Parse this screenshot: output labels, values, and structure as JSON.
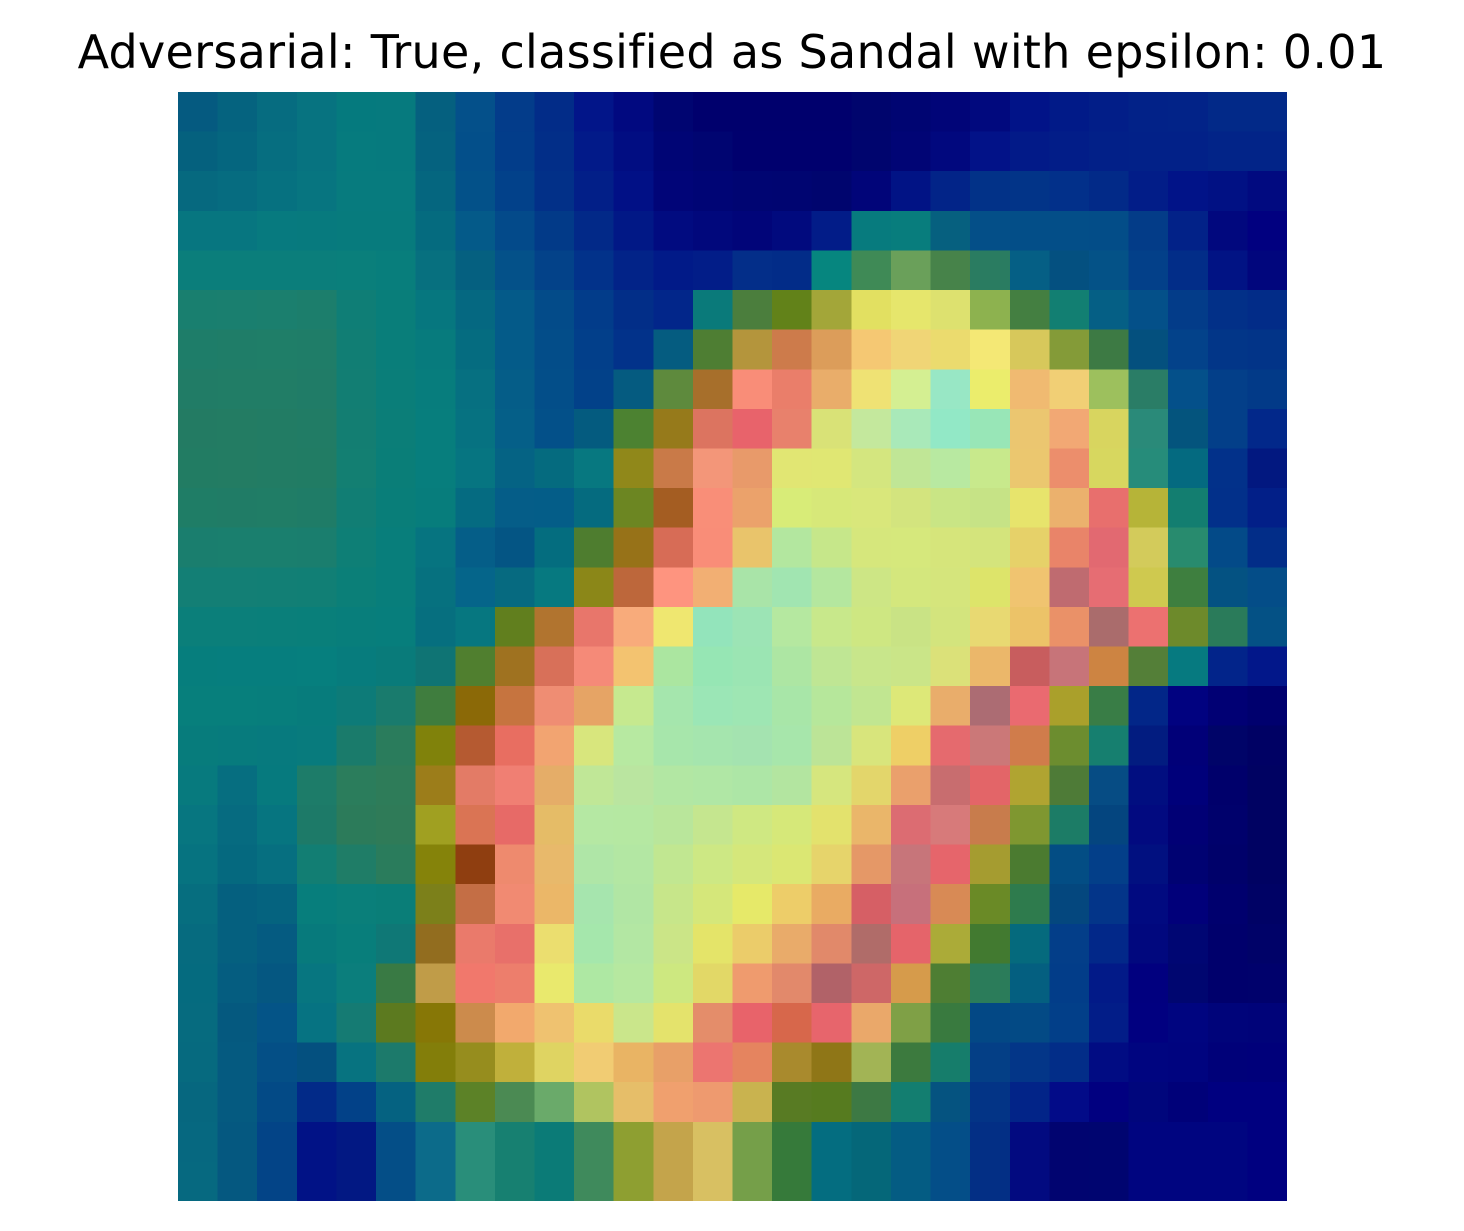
{
  "figure": {
    "title": "Adversarial: True, classified as Sandal with epsilon: 0.01"
  },
  "image": {
    "description_icon": "heatmap-overlay-image",
    "grid_size": 28,
    "colors": [
      [
        "#055a80",
        "#05637f",
        "#066c80",
        "#077380",
        "#057a7e",
        "#067a7e",
        "#05607f",
        "#04508a",
        "#033c8a",
        "#022c88",
        "#021589",
        "#010980",
        "#000571",
        "#00006d",
        "#00006d",
        "#00006d",
        "#00006d",
        "#00056d",
        "#000572",
        "#010578",
        "#01097e",
        "#011388",
        "#011a88",
        "#021e88",
        "#022288",
        "#022388",
        "#022988",
        "#022988"
      ],
      [
        "#05617e",
        "#05667f",
        "#066e80",
        "#077380",
        "#067b7e",
        "#067a7e",
        "#05627f",
        "#034f8a",
        "#023d8a",
        "#022e88",
        "#021a89",
        "#010d82",
        "#000575",
        "#000571",
        "#00006e",
        "#00006e",
        "#00006e",
        "#00056e",
        "#010575",
        "#01087e",
        "#021288",
        "#021a88",
        "#021d88",
        "#022088",
        "#022188",
        "#022188",
        "#022488",
        "#022488"
      ],
      [
        "#06697f",
        "#066c80",
        "#067180",
        "#077580",
        "#077b7e",
        "#077b7e",
        "#05667f",
        "#035189",
        "#02418a",
        "#023088",
        "#021f88",
        "#011086",
        "#010578",
        "#000575",
        "#000572",
        "#000571",
        "#00056e",
        "#010579",
        "#011385",
        "#022488",
        "#023288",
        "#023488",
        "#02308a",
        "#022a88",
        "#021d88",
        "#011388",
        "#011184",
        "#010a80"
      ],
      [
        "#077680",
        "#077680",
        "#077a7f",
        "#077a7e",
        "#077b7d",
        "#077b7d",
        "#056b7f",
        "#045a89",
        "#034a8a",
        "#023a88",
        "#022988",
        "#011886",
        "#010b80",
        "#01087c",
        "#010579",
        "#010a7e",
        "#021c88",
        "#077b7e",
        "#087d7d",
        "#06607f",
        "#044f88",
        "#034e88",
        "#034e88",
        "#034d88",
        "#033c88",
        "#022288",
        "#01087e",
        "#010080"
      ],
      [
        "#0b7e7b",
        "#0b7e7b",
        "#0b7e7b",
        "#0b7e7b",
        "#0a7f7b",
        "#087e7c",
        "#07707f",
        "#056080",
        "#045189",
        "#034289",
        "#02328a",
        "#022388",
        "#011a88",
        "#021d88",
        "#032e89",
        "#022c88",
        "#06867f",
        "#3f8a56",
        "#6aa05a",
        "#47834a",
        "#2a7c61",
        "#055f85",
        "#045080",
        "#045287",
        "#034089",
        "#022d88",
        "#011384",
        "#01067d"
      ],
      [
        "#197f6f",
        "#1a7f6f",
        "#1b7f6e",
        "#1c7e6c",
        "#0f7e76",
        "#097e7a",
        "#06777f",
        "#056881",
        "#045a89",
        "#034b89",
        "#023c8a",
        "#022e88",
        "#02268a",
        "#0a7a7a",
        "#4b7e3d",
        "#628219",
        "#a3a639",
        "#e2e061",
        "#e6e66c",
        "#dde16f",
        "#8db24f",
        "#447f41",
        "#127f72",
        "#055f85",
        "#045089",
        "#033c89",
        "#023088",
        "#022c88"
      ],
      [
        "#1e7d69",
        "#1f7d68",
        "#1f7e68",
        "#1f7d68",
        "#117e74",
        "#097e7a",
        "#077b7d",
        "#056c80",
        "#045b89",
        "#034d89",
        "#023f8a",
        "#02328a",
        "#055c80",
        "#4e7e33",
        "#b4953c",
        "#cd7b4b",
        "#dc9d5a",
        "#f5c873",
        "#f0d576",
        "#ebdb6e",
        "#f4e875",
        "#d7c85b",
        "#849b38",
        "#3d7a44",
        "#04507e",
        "#03428a",
        "#023688",
        "#023488"
      ],
      [
        "#217c66",
        "#217d66",
        "#217d66",
        "#207c67",
        "#127e73",
        "#0a7e79",
        "#077d7d",
        "#067081",
        "#055d88",
        "#034e89",
        "#024189",
        "#055b80",
        "#5e8a3d",
        "#a76f2b",
        "#f98d78",
        "#ea7e6a",
        "#e9ad6a",
        "#efe274",
        "#d4ef92",
        "#98e7c5",
        "#ebed6c",
        "#f0ba71",
        "#f1cf75",
        "#9dc05d",
        "#2a7d66",
        "#04508a",
        "#033f89",
        "#023a88"
      ],
      [
        "#237b63",
        "#237c63",
        "#227c64",
        "#217c65",
        "#137e72",
        "#0b7e78",
        "#077e7d",
        "#067281",
        "#055f88",
        "#035089",
        "#045b7f",
        "#4c8231",
        "#967a1b",
        "#dc7460",
        "#e8636b",
        "#e8816c",
        "#d9e277",
        "#c4e89d",
        "#a9e9b9",
        "#92e8c6",
        "#98e6b7",
        "#ebc670",
        "#f2a874",
        "#d8d55f",
        "#2a8a79",
        "#04547d",
        "#033f89",
        "#02288a"
      ],
      [
        "#227c63",
        "#237c63",
        "#227c64",
        "#217c64",
        "#137f72",
        "#0a7e78",
        "#077e7d",
        "#067581",
        "#056384",
        "#056b7f",
        "#077880",
        "#90881a",
        "#c97a48",
        "#f39679",
        "#e89a6a",
        "#e1e673",
        "#e0e773",
        "#d4e67f",
        "#c0e696",
        "#b8e9a1",
        "#c8e98c",
        "#ebc76f",
        "#ec8e6c",
        "#d7d75f",
        "#268c7a",
        "#046a80",
        "#02318a",
        "#021880"
      ],
      [
        "#1f7d66",
        "#207c66",
        "#207d66",
        "#1f7c67",
        "#117e74",
        "#097e79",
        "#077d7c",
        "#056b81",
        "#055d88",
        "#045d88",
        "#056b7f",
        "#6c8622",
        "#a45d22",
        "#f98e78",
        "#eba26b",
        "#d8ec78",
        "#d7e879",
        "#d9e77b",
        "#d3e47e",
        "#c9e585",
        "#c6e386",
        "#e7e46c",
        "#ebb16d",
        "#e86f6d",
        "#b6b438",
        "#137e70",
        "#02308a",
        "#021f88"
      ],
      [
        "#1a7e6e",
        "#1a7f6e",
        "#1a7f6e",
        "#1a7e6e",
        "#0e7f76",
        "#087e7b",
        "#067480",
        "#055e88",
        "#045584",
        "#046d7f",
        "#4e7d2f",
        "#977218",
        "#d76c56",
        "#f98d78",
        "#e9c46b",
        "#b3e79f",
        "#c6e78a",
        "#d6e77c",
        "#d6e87c",
        "#d6e57b",
        "#d4e47c",
        "#e6d169",
        "#e98469",
        "#e26971",
        "#d3cb5b",
        "#288b6e",
        "#034a88",
        "#022d88"
      ],
      [
        "#137f75",
        "#137f75",
        "#127f75",
        "#117f75",
        "#0b7f78",
        "#087e7b",
        "#06717f",
        "#05658a",
        "#066a80",
        "#067980",
        "#8b8718",
        "#bd673b",
        "#fe947f",
        "#f2af73",
        "#a9e4a8",
        "#a1e5b1",
        "#b4e79f",
        "#cde685",
        "#d4e77d",
        "#d5e57c",
        "#dde46a",
        "#f0c470",
        "#bf6b70",
        "#e66d73",
        "#cfc94f",
        "#3e7f3f",
        "#045282",
        "#044d88"
      ],
      [
        "#0b7f7a",
        "#0b7f7a",
        "#0a7f7a",
        "#097f7a",
        "#087e7b",
        "#077e7c",
        "#066f7f",
        "#067780",
        "#617f1e",
        "#b1742f",
        "#e8766b",
        "#f8ab7b",
        "#efe770",
        "#93e4bb",
        "#9ce4b5",
        "#b5e8a0",
        "#c8e88b",
        "#cee782",
        "#c9e385",
        "#d3e47d",
        "#e8d972",
        "#ecc368",
        "#ea9168",
        "#aa6c6c",
        "#ec7170",
        "#6d8a2b",
        "#2a7b5a",
        "#045185"
      ],
      [
        "#067e7d",
        "#067e7e",
        "#067e7e",
        "#067f7e",
        "#077c7d",
        "#097b7a",
        "#0f7474",
        "#507f2f",
        "#9f7220",
        "#d87059",
        "#f58a78",
        "#f3c370",
        "#abe6a0",
        "#96e6b4",
        "#9be5b3",
        "#ade6a3",
        "#bfe694",
        "#c8e68b",
        "#cae588",
        "#dbe179",
        "#ebb76a",
        "#c85d5e",
        "#c77479",
        "#cd8442",
        "#547f38",
        "#067a80",
        "#02248a",
        "#02178a"
      ],
      [
        "#077f7c",
        "#077f7c",
        "#077e7c",
        "#077c7c",
        "#0d7b78",
        "#197b6d",
        "#3f7d3e",
        "#8b6907",
        "#c6743f",
        "#ef8d73",
        "#e6a465",
        "#c6e98f",
        "#a5e6ad",
        "#9be6b6",
        "#9ee6b3",
        "#a8e6a8",
        "#b6e79b",
        "#c1e691",
        "#dde878",
        "#e9ad6b",
        "#ac6c73",
        "#ea6a70",
        "#aaa02b",
        "#397d46",
        "#022688",
        "#010280",
        "#010074",
        "#00006e"
      ],
      [
        "#077c7c",
        "#077b7d",
        "#077a7e",
        "#087b7d",
        "#1a7b6b",
        "#2a7c5c",
        "#80820b",
        "#b55a31",
        "#e86e61",
        "#f2a471",
        "#d8e67d",
        "#b7e9a1",
        "#a7e6ab",
        "#a5e5ae",
        "#a4e3b0",
        "#a7e6ab",
        "#bce497",
        "#d8e57c",
        "#eecf66",
        "#e56a6e",
        "#cb7878",
        "#d07c4b",
        "#6c8d2f",
        "#167f6f",
        "#021c80",
        "#010078",
        "#000468",
        "#000164"
      ],
      [
        "#077a7e",
        "#066e80",
        "#067a7e",
        "#1d7c69",
        "#2b7d5c",
        "#2e7c59",
        "#9c7d1a",
        "#e37b66",
        "#f07f73",
        "#e5ad68",
        "#c0e797",
        "#bae5a0",
        "#b2e7a3",
        "#b0e7a5",
        "#ade6a6",
        "#b3e5a0",
        "#d6e67e",
        "#e3d66b",
        "#eaa06c",
        "#c86d6f",
        "#e36568",
        "#b0a431",
        "#4e7b37",
        "#064c84",
        "#010e80",
        "#00007a",
        "#00006b",
        "#000262"
      ],
      [
        "#077680",
        "#066b80",
        "#067580",
        "#1d7a68",
        "#2c7b5a",
        "#2f7b58",
        "#a0a021",
        "#da7454",
        "#e76a67",
        "#e5bc67",
        "#b5e8a3",
        "#b5e8a2",
        "#b9e69b",
        "#c5e68f",
        "#cfe882",
        "#d6e879",
        "#e3e26d",
        "#eab66a",
        "#dc6c72",
        "#d77a7a",
        "#c87c4c",
        "#7f9730",
        "#1c7c66",
        "#04457f",
        "#020a80",
        "#010075",
        "#00016c",
        "#000262"
      ],
      [
        "#067380",
        "#05697f",
        "#066f80",
        "#127e73",
        "#1f7d67",
        "#2a7c5c",
        "#85830a",
        "#8f3e10",
        "#ee8a6e",
        "#e8b96b",
        "#afe6a7",
        "#b3e7a3",
        "#c1e791",
        "#cde884",
        "#d5e77b",
        "#dbe773",
        "#e6d46b",
        "#e59867",
        "#c7757a",
        "#e6656b",
        "#a59c30",
        "#4b7b30",
        "#034d84",
        "#033f89",
        "#011080",
        "#000272",
        "#00016a",
        "#000262"
      ],
      [
        "#066e7f",
        "#05607f",
        "#05637f",
        "#077e7c",
        "#0a7f7a",
        "#0a7e78",
        "#7c801a",
        "#c46e45",
        "#f18a72",
        "#ebb768",
        "#a6e5ae",
        "#b1e6a4",
        "#c7e68a",
        "#d5e77a",
        "#e6e969",
        "#edcd69",
        "#e9ab63",
        "#d65f65",
        "#c7707b",
        "#d88a55",
        "#6a8a26",
        "#2e7b4d",
        "#04477e",
        "#033589",
        "#010a80",
        "#01007a",
        "#00006e",
        "#000265"
      ],
      [
        "#066b7f",
        "#05607f",
        "#055b81",
        "#077a7c",
        "#087e7b",
        "#0f7876",
        "#926d1f",
        "#ea7a6b",
        "#e8706a",
        "#ebde6f",
        "#a5e7ac",
        "#b3e7a3",
        "#cbe587",
        "#e4e469",
        "#ebcc6a",
        "#e9ab6a",
        "#e1896a",
        "#b06c69",
        "#e5646a",
        "#abab38",
        "#427a30",
        "#056a7d",
        "#033e89",
        "#022889",
        "#01087e",
        "#000673",
        "#00006c",
        "#000268"
      ],
      [
        "#056b7f",
        "#055d80",
        "#055781",
        "#077680",
        "#0b7e7c",
        "#397a44",
        "#c09c48",
        "#f1786c",
        "#ed7e6c",
        "#e9e96d",
        "#aee8a3",
        "#b6e8a0",
        "#cde880",
        "#e2d867",
        "#ef9b6e",
        "#e2896b",
        "#b16268",
        "#ce6767",
        "#d69b4b",
        "#4e7e33",
        "#2b7c5a",
        "#045f80",
        "#023d89",
        "#021a88",
        "#01007f",
        "#000670",
        "#00006c",
        "#00016c"
      ],
      [
        "#066b7f",
        "#05597f",
        "#045487",
        "#067382",
        "#157b73",
        "#5c7a1f",
        "#877706",
        "#cc8b4c",
        "#f2a96d",
        "#efc270",
        "#eadb6a",
        "#cae68b",
        "#e4e36c",
        "#e48d6a",
        "#e8636a",
        "#d7674b",
        "#e7656c",
        "#eaa86a",
        "#7fa046",
        "#397a3f",
        "#034885",
        "#034a85",
        "#023f89",
        "#021d88",
        "#010080",
        "#000580",
        "#00047a",
        "#000379"
      ],
      [
        "#066a7f",
        "#055a80",
        "#044f86",
        "#04507f",
        "#077380",
        "#1c7a6b",
        "#837e0a",
        "#968d1e",
        "#c0b03b",
        "#dfd462",
        "#f1cc73",
        "#e9b464",
        "#e8a068",
        "#ec7570",
        "#e5845f",
        "#a98a2d",
        "#8f7617",
        "#a2b455",
        "#3c7a3e",
        "#167d6b",
        "#043f86",
        "#033688",
        "#022d88",
        "#010c83",
        "#000580",
        "#00047f",
        "#000179",
        "#00007a"
      ],
      [
        "#06677f",
        "#055a80",
        "#034a86",
        "#022a88",
        "#024188",
        "#056281",
        "#1f7c69",
        "#5c8227",
        "#4b8a53",
        "#6aaa6a",
        "#b0c460",
        "#e6be69",
        "#f0a06e",
        "#ee9a6f",
        "#c9b34f",
        "#587b23",
        "#567b1f",
        "#3d7944",
        "#137e70",
        "#055380",
        "#033486",
        "#022488",
        "#020b88",
        "#010080",
        "#00067c",
        "#000179",
        "#000080",
        "#000080"
      ],
      [
        "#066880",
        "#055880",
        "#034487",
        "#011286",
        "#021883",
        "#044e87",
        "#0c6b8a",
        "#298e7a",
        "#178071",
        "#0b7b77",
        "#3f8a5c",
        "#8e9f31",
        "#c4a44b",
        "#d8c062",
        "#759f49",
        "#367a3a",
        "#046d80",
        "#056779",
        "#045c83",
        "#044e88",
        "#032f85",
        "#020a80",
        "#010470",
        "#000570",
        "#000580",
        "#000580",
        "#000580",
        "#000080"
      ],
      [
        "#066980",
        "#055880",
        "#034487",
        "#011286",
        "#021883",
        "#044e87",
        "#0c6b8a",
        "#298e7a",
        "#178071",
        "#0b7b77",
        "#3f8a5c",
        "#8e9f31",
        "#c4a44b",
        "#d8c062",
        "#759f49",
        "#367a3a",
        "#046d80",
        "#056779",
        "#045c83",
        "#044e88",
        "#032f85",
        "#020a80",
        "#010470",
        "#000570",
        "#000580",
        "#000580",
        "#000580",
        "#000080"
      ]
    ]
  }
}
